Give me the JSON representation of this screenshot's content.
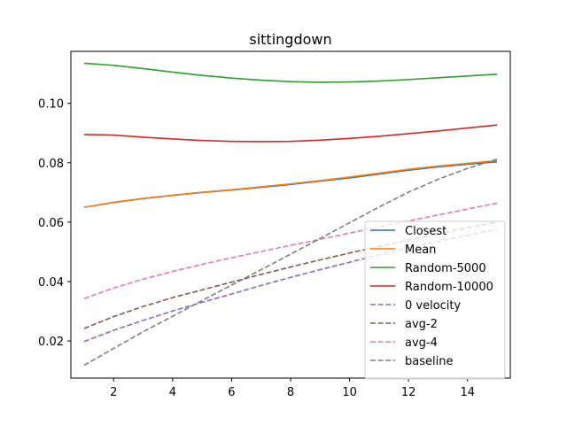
{
  "chart_data": {
    "type": "line",
    "title": "sittingdown",
    "xlabel": "",
    "ylabel": "",
    "xlim": [
      0.55,
      15.45
    ],
    "ylim": [
      0.0075,
      0.1175
    ],
    "xticks": [
      2,
      4,
      6,
      8,
      10,
      12,
      14
    ],
    "xtick_labels": [
      "2",
      "4",
      "6",
      "8",
      "10",
      "12",
      "14"
    ],
    "yticks": [
      0.02,
      0.04,
      0.06,
      0.08,
      0.1
    ],
    "ytick_labels": [
      "0.02",
      "0.04",
      "0.06",
      "0.08",
      "0.10"
    ],
    "grid": false,
    "legend_position": "lower-right",
    "x": [
      1,
      2,
      3,
      4,
      5,
      6,
      7,
      8,
      9,
      10,
      11,
      12,
      13,
      14,
      15
    ],
    "series": [
      {
        "name": "Closest",
        "color": "#1f77b4",
        "dash": "solid",
        "values": [
          0.065,
          0.0666,
          0.0679,
          0.069,
          0.07,
          0.0708,
          0.0717,
          0.0727,
          0.0738,
          0.0749,
          0.0762,
          0.0775,
          0.0786,
          0.0795,
          0.0803
        ]
      },
      {
        "name": "Mean",
        "color": "#ff7f0e",
        "dash": "solid",
        "values": [
          0.065,
          0.0667,
          0.068,
          0.0691,
          0.0701,
          0.0709,
          0.0719,
          0.0729,
          0.074,
          0.0752,
          0.0765,
          0.0778,
          0.0789,
          0.0798,
          0.0807
        ]
      },
      {
        "name": "Random-5000",
        "color": "#2ca02c",
        "dash": "solid",
        "values": [
          0.1135,
          0.1128,
          0.1117,
          0.1105,
          0.1094,
          0.1085,
          0.1078,
          0.1073,
          0.1071,
          0.1072,
          0.1075,
          0.108,
          0.1086,
          0.1092,
          0.1098
        ]
      },
      {
        "name": "Random-10000",
        "color": "#d62728",
        "dash": "solid",
        "values": [
          0.0895,
          0.0893,
          0.0886,
          0.088,
          0.0875,
          0.0872,
          0.0871,
          0.0872,
          0.0876,
          0.0882,
          0.0889,
          0.0898,
          0.0907,
          0.0917,
          0.0927
        ]
      },
      {
        "name": "0 velocity",
        "color": "#9467bd",
        "dash": "dashed",
        "values": [
          0.0198,
          0.0236,
          0.0269,
          0.0301,
          0.033,
          0.0358,
          0.0387,
          0.0414,
          0.044,
          0.0465,
          0.049,
          0.0513,
          0.0535,
          0.0556,
          0.0575
        ]
      },
      {
        "name": "avg-2",
        "color": "#8c564b",
        "dash": "dashed",
        "values": [
          0.0242,
          0.0282,
          0.0316,
          0.0346,
          0.0372,
          0.0398,
          0.0424,
          0.0449,
          0.0473,
          0.0496,
          0.0518,
          0.054,
          0.0561,
          0.0581,
          0.06
        ]
      },
      {
        "name": "avg-4",
        "color": "#e377c2",
        "dash": "dashed",
        "values": [
          0.0343,
          0.0378,
          0.0408,
          0.0434,
          0.0458,
          0.048,
          0.0501,
          0.0522,
          0.0542,
          0.0563,
          0.0584,
          0.0604,
          0.0624,
          0.0644,
          0.0664
        ]
      },
      {
        "name": "baseline",
        "color": "#7f7f7f",
        "dash": "dashed",
        "values": [
          0.0118,
          0.0175,
          0.0231,
          0.0283,
          0.0336,
          0.0388,
          0.044,
          0.0492,
          0.0545,
          0.0598,
          0.0651,
          0.0701,
          0.0744,
          0.0781,
          0.0812
        ]
      }
    ]
  }
}
